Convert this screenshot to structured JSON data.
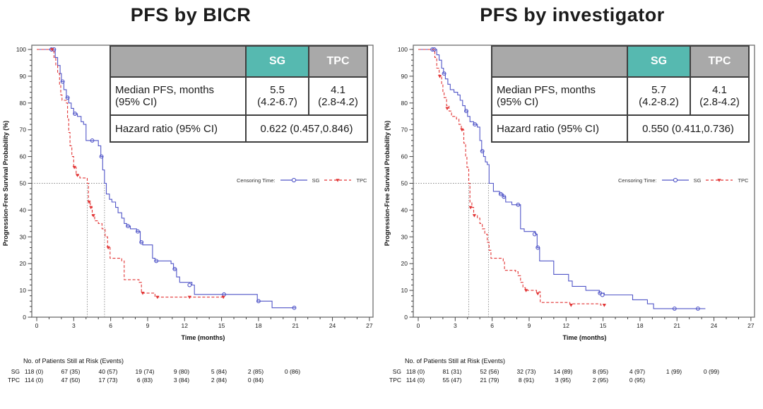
{
  "colors": {
    "sg": "#5156c8",
    "tpc": "#e23535",
    "teal_header": "#56b9b0",
    "gray_header": "#a9a9a9",
    "table_border": "#3f3f3f",
    "axis": "#565656",
    "ref_line": "#8a8a8a"
  },
  "panels": [
    {
      "title": "PFS by BICR",
      "stats_table": {
        "header": {
          "sg": "SG",
          "tpc": "TPC"
        },
        "median_row": {
          "label_line1": "Median PFS, months",
          "label_line2": "(95% CI)",
          "sg_value": "5.5",
          "sg_ci": "(4.2-6.7)",
          "tpc_value": "4.1",
          "tpc_ci": "(2.8-4.2)"
        },
        "hazard_row": {
          "label": "Hazard ratio (95% CI)",
          "value": "0.622 (0.457,0.846)"
        }
      },
      "legend": {
        "label": "Censoring Time:",
        "sg": "SG",
        "tpc": "TPC"
      },
      "risk_table": {
        "caption": "No. of Patients Still at Risk (Events)",
        "rows": [
          {
            "label": "SG",
            "values": [
              "118 (0)",
              "67 (35)",
              "40 (57)",
              "19 (74)",
              "9 (80)",
              "5 (84)",
              "2 (85)",
              "0 (86)"
            ]
          },
          {
            "label": "TPC",
            "values": [
              "114 (0)",
              "47 (50)",
              "17 (73)",
              "6 (83)",
              "3 (84)",
              "2 (84)",
              "0 (84)"
            ]
          }
        ]
      }
    },
    {
      "title": "PFS by investigator",
      "stats_table": {
        "header": {
          "sg": "SG",
          "tpc": "TPC"
        },
        "median_row": {
          "label_line1": "Median PFS, months",
          "label_line2": "(95% CI)",
          "sg_value": "5.7",
          "sg_ci": "(4.2-8.2)",
          "tpc_value": "4.1",
          "tpc_ci": "(2.8-4.2)"
        },
        "hazard_row": {
          "label": "Hazard ratio (95% CI)",
          "value": "0.550 (0.411,0.736)"
        }
      },
      "legend": {
        "label": "Censoring Time:",
        "sg": "SG",
        "tpc": "TPC"
      },
      "risk_table": {
        "caption": "No. of Patients Still at Risk (Events)",
        "rows": [
          {
            "label": "SG",
            "values": [
              "118 (0)",
              "81 (31)",
              "52 (56)",
              "32 (73)",
              "14 (89)",
              "8 (95)",
              "4 (97)",
              "1 (99)",
              "0 (99)"
            ]
          },
          {
            "label": "TPC",
            "values": [
              "114 (0)",
              "55 (47)",
              "21 (79)",
              "8 (91)",
              "3 (95)",
              "2 (95)",
              "0 (95)"
            ]
          }
        ]
      }
    }
  ],
  "chart_data": [
    {
      "type": "line",
      "subtype": "kaplan-meier-step",
      "title": "PFS by BICR",
      "xlabel": "Time (months)",
      "ylabel": "Progression-Free Survival Probability (%)",
      "xlim": [
        0,
        27
      ],
      "xtick_step": 3,
      "xminor_step": 1,
      "ylim": [
        0,
        100
      ],
      "ytick_step": 10,
      "yminor_step": 2,
      "grid": false,
      "legend_position": "right-middle",
      "median_ref": {
        "y": 50,
        "x": [
          4.1,
          5.5
        ]
      },
      "series": [
        {
          "name": "SG",
          "color": "#5156c8",
          "style": "solid",
          "marker": "circle",
          "steps": [
            [
              0,
              100
            ],
            [
              1.5,
              97
            ],
            [
              1.7,
              94
            ],
            [
              1.9,
              91
            ],
            [
              2.0,
              88
            ],
            [
              2.2,
              85
            ],
            [
              2.4,
              82
            ],
            [
              2.6,
              80
            ],
            [
              2.8,
              78
            ],
            [
              3.0,
              76
            ],
            [
              3.3,
              75
            ],
            [
              3.6,
              73
            ],
            [
              3.8,
              72
            ],
            [
              4.0,
              66
            ],
            [
              5.0,
              64
            ],
            [
              5.2,
              60
            ],
            [
              5.35,
              55
            ],
            [
              5.5,
              50
            ],
            [
              5.65,
              46
            ],
            [
              5.9,
              44
            ],
            [
              6.1,
              43
            ],
            [
              6.4,
              41
            ],
            [
              6.6,
              39
            ],
            [
              6.9,
              37
            ],
            [
              7.1,
              35
            ],
            [
              7.3,
              34
            ],
            [
              7.6,
              33
            ],
            [
              8.1,
              32
            ],
            [
              8.4,
              28
            ],
            [
              8.6,
              27
            ],
            [
              9.4,
              22
            ],
            [
              9.6,
              21
            ],
            [
              10.9,
              20
            ],
            [
              11.1,
              18
            ],
            [
              11.35,
              15
            ],
            [
              11.6,
              13
            ],
            [
              12.6,
              12
            ],
            [
              12.8,
              8.5
            ],
            [
              17.9,
              6
            ],
            [
              19.1,
              3.5
            ],
            [
              21.0,
              3.5
            ]
          ],
          "censors": [
            [
              1.2,
              100
            ],
            [
              1.4,
              100
            ],
            [
              2.1,
              88
            ],
            [
              2.5,
              82
            ],
            [
              3.1,
              76
            ],
            [
              4.5,
              66
            ],
            [
              5.25,
              60
            ],
            [
              7.4,
              34
            ],
            [
              8.2,
              32
            ],
            [
              8.5,
              28
            ],
            [
              9.7,
              21
            ],
            [
              11.2,
              18
            ],
            [
              12.4,
              12
            ],
            [
              15.2,
              8.5
            ],
            [
              18.0,
              6
            ],
            [
              20.9,
              3.5
            ]
          ]
        },
        {
          "name": "TPC",
          "color": "#e23535",
          "style": "dashed",
          "marker": "triangle",
          "steps": [
            [
              0,
              100
            ],
            [
              1.4,
              97
            ],
            [
              1.55,
              94
            ],
            [
              1.7,
              91
            ],
            [
              1.85,
              87
            ],
            [
              1.95,
              83
            ],
            [
              2.05,
              81
            ],
            [
              2.4,
              80
            ],
            [
              2.5,
              74
            ],
            [
              2.6,
              69
            ],
            [
              2.7,
              64
            ],
            [
              2.85,
              60
            ],
            [
              3.0,
              56
            ],
            [
              3.2,
              53
            ],
            [
              3.5,
              52
            ],
            [
              4.1,
              50
            ],
            [
              4.2,
              43
            ],
            [
              4.35,
              41
            ],
            [
              4.5,
              38
            ],
            [
              4.7,
              36
            ],
            [
              5.0,
              35
            ],
            [
              5.3,
              33
            ],
            [
              5.55,
              30
            ],
            [
              5.75,
              26
            ],
            [
              5.95,
              22
            ],
            [
              6.9,
              21
            ],
            [
              7.1,
              14
            ],
            [
              8.3,
              13
            ],
            [
              8.5,
              9
            ],
            [
              9.6,
              7.5
            ],
            [
              15.2,
              7.5
            ]
          ],
          "censors": [
            [
              1.25,
              100
            ],
            [
              3.05,
              56
            ],
            [
              3.3,
              53
            ],
            [
              4.25,
              43
            ],
            [
              4.4,
              41
            ],
            [
              4.6,
              38
            ],
            [
              5.8,
              26
            ],
            [
              8.6,
              9
            ],
            [
              9.8,
              7.5
            ],
            [
              12.4,
              7.5
            ],
            [
              15.15,
              7.5
            ]
          ]
        }
      ]
    },
    {
      "type": "line",
      "subtype": "kaplan-meier-step",
      "title": "PFS by investigator",
      "xlabel": "Time (months)",
      "ylabel": "Progression-Free Survival Probability (%)",
      "xlim": [
        0,
        27
      ],
      "xtick_step": 3,
      "xminor_step": 1,
      "ylim": [
        0,
        100
      ],
      "ytick_step": 10,
      "yminor_step": 2,
      "grid": false,
      "legend_position": "right-middle",
      "median_ref": {
        "y": 50,
        "x": [
          4.1,
          5.7
        ]
      },
      "series": [
        {
          "name": "SG",
          "color": "#5156c8",
          "style": "solid",
          "marker": "circle",
          "steps": [
            [
              0,
              100
            ],
            [
              1.5,
              98
            ],
            [
              1.7,
              96
            ],
            [
              1.9,
              93
            ],
            [
              2.05,
              91
            ],
            [
              2.2,
              89
            ],
            [
              2.4,
              87
            ],
            [
              2.6,
              85
            ],
            [
              2.9,
              84
            ],
            [
              3.2,
              83
            ],
            [
              3.4,
              81
            ],
            [
              3.6,
              79
            ],
            [
              3.8,
              77
            ],
            [
              4.0,
              75
            ],
            [
              4.2,
              73
            ],
            [
              4.5,
              72
            ],
            [
              4.8,
              71
            ],
            [
              5.0,
              66
            ],
            [
              5.15,
              62
            ],
            [
              5.3,
              60
            ],
            [
              5.45,
              58
            ],
            [
              5.6,
              57
            ],
            [
              5.75,
              50
            ],
            [
              6.1,
              47
            ],
            [
              6.6,
              46
            ],
            [
              6.9,
              45
            ],
            [
              7.1,
              43
            ],
            [
              7.6,
              42
            ],
            [
              8.3,
              33
            ],
            [
              8.6,
              32
            ],
            [
              9.5,
              31
            ],
            [
              9.65,
              26
            ],
            [
              9.85,
              21
            ],
            [
              11.0,
              16
            ],
            [
              12.2,
              13.5
            ],
            [
              12.5,
              11.5
            ],
            [
              13.6,
              10
            ],
            [
              14.7,
              9
            ],
            [
              15.1,
              8.3
            ],
            [
              17.4,
              6.5
            ],
            [
              18.6,
              5
            ],
            [
              19.1,
              3.2
            ],
            [
              23.3,
              3.2
            ]
          ],
          "censors": [
            [
              1.15,
              100
            ],
            [
              1.3,
              100
            ],
            [
              2.1,
              91
            ],
            [
              3.9,
              77
            ],
            [
              4.6,
              72
            ],
            [
              5.2,
              62
            ],
            [
              6.7,
              46
            ],
            [
              6.95,
              45
            ],
            [
              8.1,
              42
            ],
            [
              9.45,
              31
            ],
            [
              9.7,
              26
            ],
            [
              14.75,
              9
            ],
            [
              14.95,
              8.3
            ],
            [
              20.8,
              3.2
            ],
            [
              22.7,
              3.2
            ]
          ]
        },
        {
          "name": "TPC",
          "color": "#e23535",
          "style": "dashed",
          "marker": "triangle",
          "steps": [
            [
              0,
              100
            ],
            [
              1.35,
              97
            ],
            [
              1.5,
              93
            ],
            [
              1.7,
              90
            ],
            [
              1.9,
              87
            ],
            [
              2.0,
              84
            ],
            [
              2.1,
              82
            ],
            [
              2.3,
              79
            ],
            [
              2.5,
              77
            ],
            [
              2.7,
              75
            ],
            [
              3.1,
              74
            ],
            [
              3.3,
              72
            ],
            [
              3.5,
              70
            ],
            [
              3.7,
              65
            ],
            [
              3.85,
              60
            ],
            [
              3.95,
              56
            ],
            [
              4.1,
              50
            ],
            [
              4.2,
              43
            ],
            [
              4.35,
              41
            ],
            [
              4.5,
              38
            ],
            [
              4.8,
              37
            ],
            [
              5.0,
              35
            ],
            [
              5.2,
              33
            ],
            [
              5.4,
              31
            ],
            [
              5.6,
              28
            ],
            [
              5.75,
              25
            ],
            [
              5.9,
              22
            ],
            [
              6.9,
              21
            ],
            [
              7.0,
              17.5
            ],
            [
              7.9,
              17
            ],
            [
              8.1,
              15.5
            ],
            [
              8.3,
              13
            ],
            [
              8.5,
              11
            ],
            [
              8.7,
              10
            ],
            [
              9.6,
              9.5
            ],
            [
              9.9,
              5.5
            ],
            [
              12.3,
              5
            ],
            [
              14.8,
              4.5
            ],
            [
              15.2,
              4.5
            ]
          ],
          "censors": [
            [
              1.75,
              90
            ],
            [
              2.35,
              78
            ],
            [
              3.55,
              70
            ],
            [
              4.25,
              41
            ],
            [
              4.55,
              38
            ],
            [
              8.75,
              10
            ],
            [
              9.7,
              8.8
            ],
            [
              12.4,
              4.5
            ],
            [
              15.1,
              4.5
            ]
          ]
        }
      ]
    }
  ]
}
